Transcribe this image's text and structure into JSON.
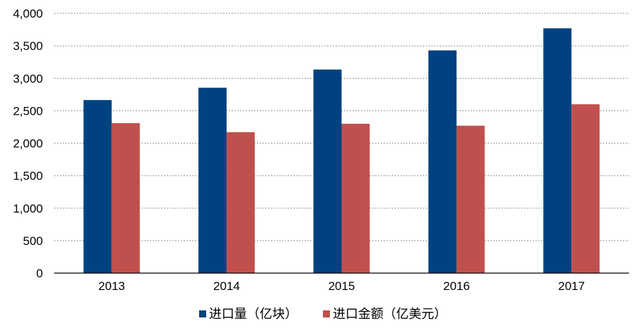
{
  "chart_data": {
    "type": "bar",
    "categories": [
      "2013",
      "2014",
      "2015",
      "2016",
      "2017"
    ],
    "series": [
      {
        "name": "进口量（亿块）",
        "color": "#00427f",
        "values": [
          2665,
          2855,
          3135,
          3430,
          3770
        ]
      },
      {
        "name": "进口金额（亿美元）",
        "color": "#c0504d",
        "values": [
          2310,
          2170,
          2300,
          2270,
          2600
        ]
      }
    ],
    "yticks": [
      "0",
      "500",
      "1,000",
      "1,500",
      "2,000",
      "2,500",
      "3,000",
      "3,500",
      "4,000"
    ],
    "ylim": [
      0,
      4000
    ],
    "grid": true,
    "legend_position": "bottom"
  }
}
